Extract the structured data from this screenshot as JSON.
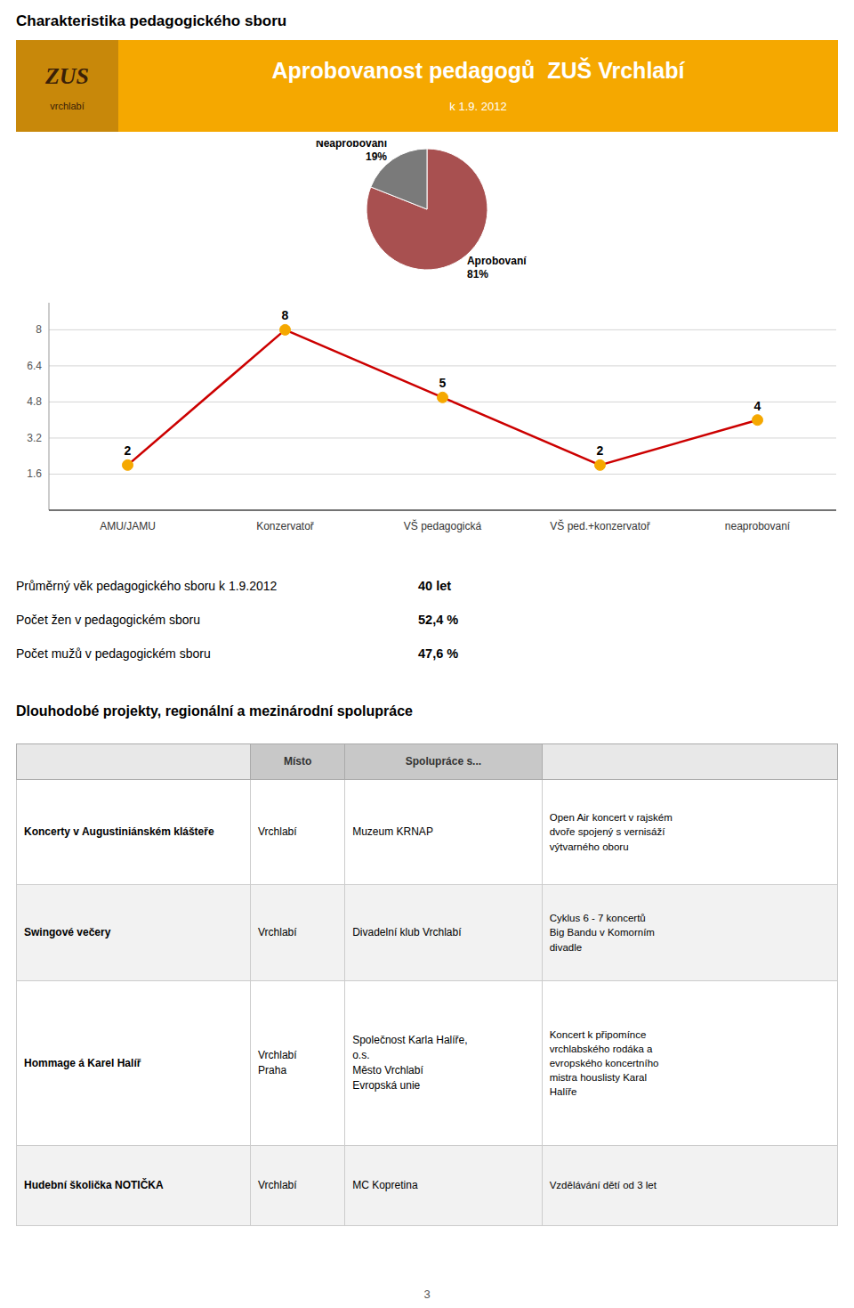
{
  "page_title": "Charakteristika pedagogického sboru",
  "header": {
    "title": "Aprobovanost pedagogů  ZUŠ Vrchlabí",
    "subtitle": "k 1.9. 2012",
    "color": "#F5A800",
    "title_color": "#FFFFFF",
    "subtitle_color": "#FFFFFF",
    "logo_title": "ZUS",
    "logo_subtitle": "vrchlabí"
  },
  "chart_data": [
    {
      "type": "pie",
      "categories": [
        "Aprobovaní",
        "Neaprobovaní"
      ],
      "values": [
        81,
        19
      ],
      "value_labels": [
        "81%",
        "19%"
      ],
      "colors": [
        "#A85050",
        "#7A7A7A"
      ],
      "data_labels": true
    },
    {
      "type": "line",
      "categories": [
        "AMU/JAMU",
        "Konzervatoř",
        "VŠ pedagogická",
        "VŠ ped.+konzervatoř",
        "neaprobovaní"
      ],
      "values": [
        2,
        8,
        5,
        2,
        4
      ],
      "color": "#CC0000",
      "colors": [
        "#F5A800",
        "#F5A800",
        "#F5A800",
        "#F5A800",
        "#F5A800"
      ],
      "marker": "circle",
      "ylim": [
        0,
        9.2
      ],
      "yticks": [
        1.6,
        3.2,
        4.8,
        6.4,
        8
      ],
      "grid": true,
      "data_labels": true
    }
  ],
  "stats": [
    {
      "label": "Průměrný věk pedagogického sboru k 1.9.2012",
      "value": "40 let"
    },
    {
      "label": "Počet žen v pedagogickém sboru",
      "value": "52,4 %"
    },
    {
      "label": "Počet mužů v pedagogickém sboru",
      "value": "47,6 %"
    }
  ],
  "section_title": "Dlouhodobé projekty, regionální a mezinárodní spolupráce",
  "table": {
    "header": [
      null,
      "Místo",
      "Spolupráce s...",
      null
    ],
    "rows": [
      [
        "Koncerty v Augustiniánském klášteře",
        "Vrchlabí",
        "Muzeum KRNAP",
        "Open Air koncert v rajském\ndvoře spojený s vernisáží\nvýtvarného oboru"
      ],
      [
        "Swingové večery",
        "Vrchlabí",
        "Divadelní klub Vrchlabí",
        "Cyklus 6 - 7 koncertů\nBig Bandu v Komorním\ndivadle"
      ],
      [
        "Hommage á Karel Halíř",
        "Vrchlabí\nPraha",
        "Společnost Karla Halíře,\no.s.\nMěsto Vrchlabí\nEvropská unie",
        "Koncert k připomínce\nvrchlabského rodáka a\nevropského koncertního\nmistra houslisty Karal\nHalíře"
      ],
      [
        "Hudební školička NOTIČKA",
        "Vrchlabí",
        "MC Kopretina",
        "Vzdělávání dětí od 3 let"
      ]
    ]
  },
  "page_number": "3",
  "text_color": "#000000",
  "bg_color": "#FFFFFF"
}
